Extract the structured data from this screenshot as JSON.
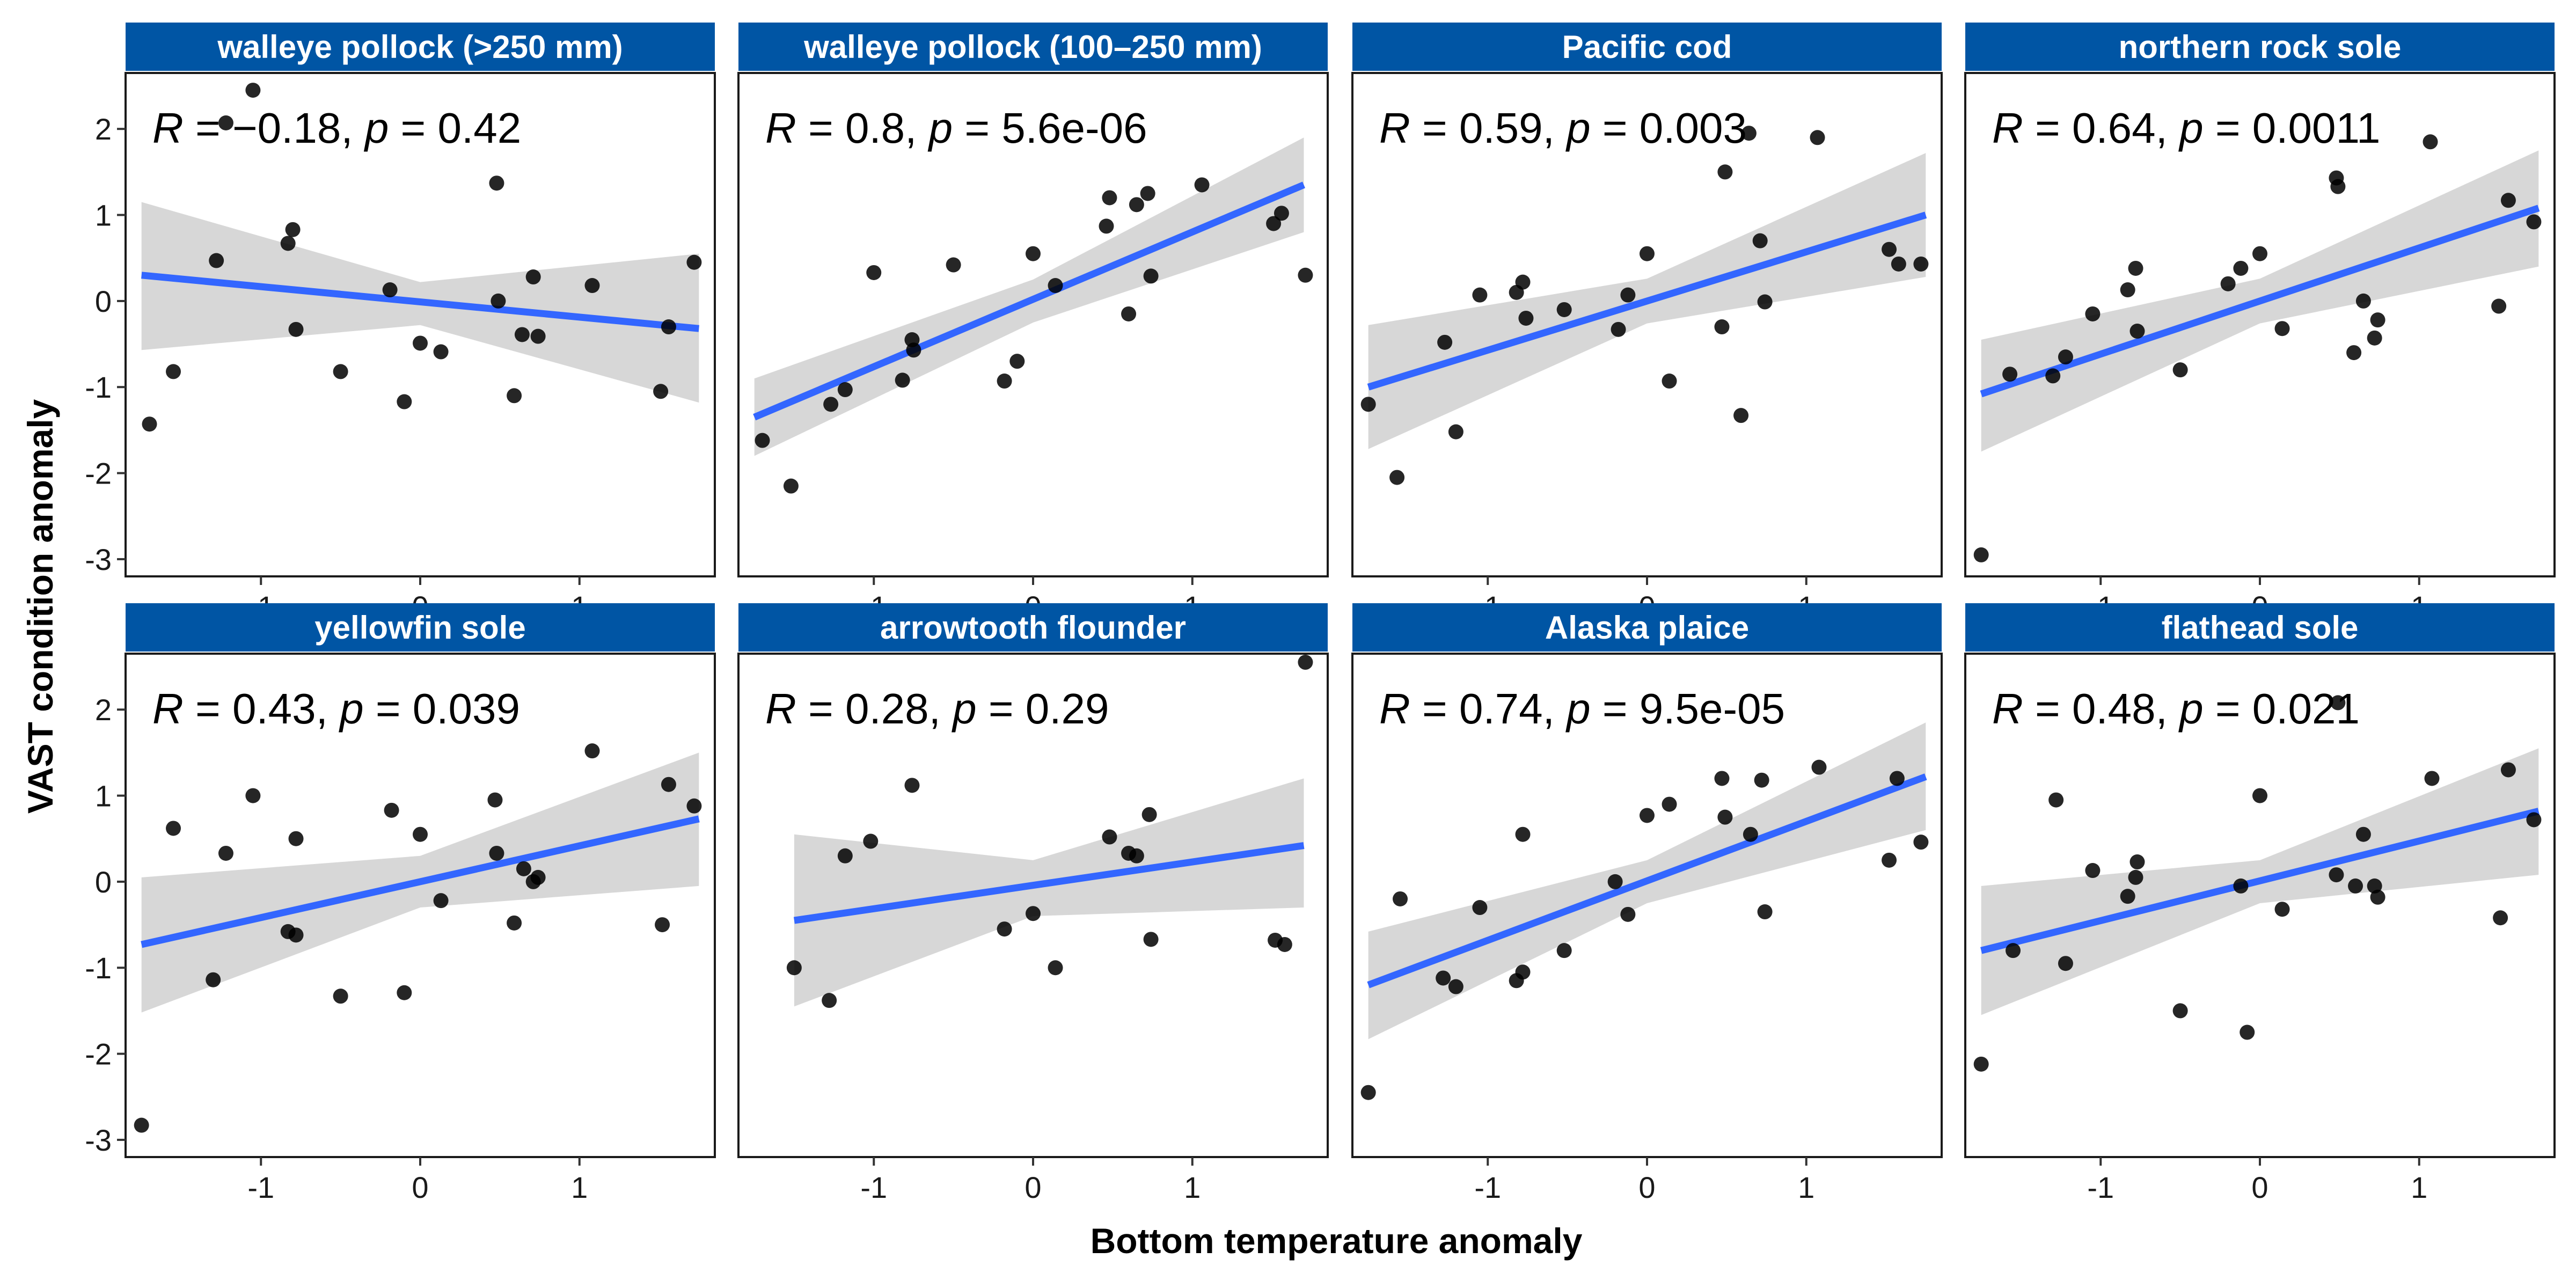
{
  "chart_data": {
    "type": "scatter",
    "xlabel": "Bottom temperature anomaly",
    "ylabel": "VAST condition anomaly",
    "xlim": [
      -1.85,
      1.85
    ],
    "ylim": [
      -3.2,
      2.65
    ],
    "x_ticks": [
      -1,
      0,
      1
    ],
    "x_tick_labels": [
      "-1",
      "0",
      "1"
    ],
    "y_ticks": [
      -3,
      -2,
      -1,
      0,
      1,
      2
    ],
    "y_tick_labels": [
      "-3",
      "-2",
      "-1",
      "0",
      "1",
      "2"
    ],
    "grid": false,
    "facet_layout": "2 rows x 4 columns",
    "colors": {
      "strip": "#0055a4",
      "fit_line": "#3366ff",
      "confidence_band": "#d3d3d3",
      "points": "#000000"
    },
    "panels": [
      {
        "title": "walleye pollock (>250 mm)",
        "stats": {
          "r_label": "R",
          "r_text": " = −0.18, ",
          "p_label": "p",
          "p_text": " = 0.42"
        },
        "fit": {
          "x": [
            -1.75,
            1.75
          ],
          "y": [
            0.3,
            -0.32
          ]
        },
        "band": {
          "x": [
            -1.75,
            0,
            1.75
          ],
          "upper": [
            1.15,
            0.22,
            0.55
          ],
          "lower": [
            -0.57,
            -0.28,
            -1.18
          ]
        },
        "points": [
          {
            "x": -1.7,
            "y": -1.43
          },
          {
            "x": -1.55,
            "y": -0.82
          },
          {
            "x": -1.28,
            "y": 0.47
          },
          {
            "x": -1.22,
            "y": 2.07
          },
          {
            "x": -1.05,
            "y": 2.45
          },
          {
            "x": -0.83,
            "y": 0.67
          },
          {
            "x": -0.8,
            "y": 0.83
          },
          {
            "x": -0.78,
            "y": -0.33
          },
          {
            "x": -0.5,
            "y": -0.82
          },
          {
            "x": -0.19,
            "y": 0.13
          },
          {
            "x": -0.1,
            "y": -1.17
          },
          {
            "x": 0.0,
            "y": -0.49
          },
          {
            "x": 0.13,
            "y": -0.59
          },
          {
            "x": 0.48,
            "y": 1.37
          },
          {
            "x": 0.49,
            "y": 0.0
          },
          {
            "x": 0.59,
            "y": -1.1
          },
          {
            "x": 0.64,
            "y": -0.39
          },
          {
            "x": 0.71,
            "y": 0.28
          },
          {
            "x": 0.74,
            "y": -0.41
          },
          {
            "x": 1.08,
            "y": 0.18
          },
          {
            "x": 1.51,
            "y": -1.05
          },
          {
            "x": 1.56,
            "y": -0.3
          },
          {
            "x": 1.72,
            "y": 0.45
          }
        ]
      },
      {
        "title": "walleye pollock (100–250 mm)",
        "stats": {
          "r_label": "R",
          "r_text": " = 0.8, ",
          "p_label": "p",
          "p_text": " = 5.6e-06"
        },
        "fit": {
          "x": [
            -1.75,
            1.7
          ],
          "y": [
            -1.35,
            1.35
          ]
        },
        "band": {
          "x": [
            -1.75,
            0,
            1.7
          ],
          "upper": [
            -0.9,
            0.25,
            1.9
          ],
          "lower": [
            -1.8,
            -0.25,
            0.8
          ]
        },
        "points": [
          {
            "x": -1.7,
            "y": -1.62
          },
          {
            "x": -1.52,
            "y": -2.15
          },
          {
            "x": -1.27,
            "y": -1.2
          },
          {
            "x": -1.18,
            "y": -1.03
          },
          {
            "x": -1.0,
            "y": 0.33
          },
          {
            "x": -0.82,
            "y": -0.92
          },
          {
            "x": -0.76,
            "y": -0.45
          },
          {
            "x": -0.75,
            "y": -0.57
          },
          {
            "x": -0.5,
            "y": 0.42
          },
          {
            "x": -0.18,
            "y": -0.93
          },
          {
            "x": -0.1,
            "y": -0.7
          },
          {
            "x": 0.0,
            "y": 0.55
          },
          {
            "x": 0.14,
            "y": 0.18
          },
          {
            "x": 0.46,
            "y": 0.87
          },
          {
            "x": 0.48,
            "y": 1.2
          },
          {
            "x": 0.6,
            "y": -0.15
          },
          {
            "x": 0.65,
            "y": 1.12
          },
          {
            "x": 0.72,
            "y": 1.25
          },
          {
            "x": 0.74,
            "y": 0.29
          },
          {
            "x": 1.06,
            "y": 1.35
          },
          {
            "x": 1.51,
            "y": 0.9
          },
          {
            "x": 1.56,
            "y": 1.02
          },
          {
            "x": 1.71,
            "y": 0.3
          }
        ]
      },
      {
        "title": "Pacific cod",
        "stats": {
          "r_label": "R",
          "r_text": " = 0.59, ",
          "p_label": "p",
          "p_text": " = 0.003"
        },
        "fit": {
          "x": [
            -1.75,
            1.75
          ],
          "y": [
            -1.0,
            1.0
          ]
        },
        "band": {
          "x": [
            -1.75,
            0,
            1.75
          ],
          "upper": [
            -0.28,
            0.26,
            1.72
          ],
          "lower": [
            -1.72,
            -0.26,
            0.28
          ]
        },
        "points": [
          {
            "x": -1.75,
            "y": -1.2
          },
          {
            "x": -1.57,
            "y": -2.05
          },
          {
            "x": -1.27,
            "y": -0.48
          },
          {
            "x": -1.2,
            "y": -1.52
          },
          {
            "x": -1.05,
            "y": 0.07
          },
          {
            "x": -0.82,
            "y": 0.1
          },
          {
            "x": -0.78,
            "y": 0.22
          },
          {
            "x": -0.76,
            "y": -0.2
          },
          {
            "x": -0.52,
            "y": -0.1
          },
          {
            "x": -0.18,
            "y": -0.33
          },
          {
            "x": -0.12,
            "y": 0.07
          },
          {
            "x": 0.0,
            "y": 0.55
          },
          {
            "x": 0.14,
            "y": -0.93
          },
          {
            "x": 0.47,
            "y": -0.3
          },
          {
            "x": 0.49,
            "y": 1.5
          },
          {
            "x": 0.59,
            "y": -1.33
          },
          {
            "x": 0.64,
            "y": 1.95
          },
          {
            "x": 0.71,
            "y": 0.7
          },
          {
            "x": 0.74,
            "y": -0.01
          },
          {
            "x": 1.07,
            "y": 1.9
          },
          {
            "x": 1.52,
            "y": 0.6
          },
          {
            "x": 1.58,
            "y": 0.43
          },
          {
            "x": 1.72,
            "y": 0.43
          }
        ]
      },
      {
        "title": "northern rock sole",
        "stats": {
          "r_label": "R",
          "r_text": " = 0.64, ",
          "p_label": "p",
          "p_text": " = 0.0011"
        },
        "fit": {
          "x": [
            -1.75,
            1.75
          ],
          "y": [
            -1.08,
            1.08
          ]
        },
        "band": {
          "x": [
            -1.75,
            0,
            1.75
          ],
          "upper": [
            -0.45,
            0.26,
            1.75
          ],
          "lower": [
            -1.75,
            -0.26,
            0.4
          ]
        },
        "points": [
          {
            "x": -1.75,
            "y": -2.95
          },
          {
            "x": -1.57,
            "y": -0.85
          },
          {
            "x": -1.3,
            "y": -0.87
          },
          {
            "x": -1.22,
            "y": -0.65
          },
          {
            "x": -1.05,
            "y": -0.15
          },
          {
            "x": -0.83,
            "y": 0.13
          },
          {
            "x": -0.78,
            "y": 0.38
          },
          {
            "x": -0.77,
            "y": -0.35
          },
          {
            "x": -0.5,
            "y": -0.8
          },
          {
            "x": -0.2,
            "y": 0.2
          },
          {
            "x": -0.12,
            "y": 0.38
          },
          {
            "x": 0.0,
            "y": 0.55
          },
          {
            "x": 0.14,
            "y": -0.32
          },
          {
            "x": 0.48,
            "y": 1.43
          },
          {
            "x": 0.49,
            "y": 1.33
          },
          {
            "x": 0.59,
            "y": -0.6
          },
          {
            "x": 0.65,
            "y": 0.0
          },
          {
            "x": 0.72,
            "y": -0.43
          },
          {
            "x": 0.74,
            "y": -0.22
          },
          {
            "x": 1.07,
            "y": 1.85
          },
          {
            "x": 1.5,
            "y": -0.06
          },
          {
            "x": 1.56,
            "y": 1.17
          },
          {
            "x": 1.72,
            "y": 0.92
          }
        ]
      },
      {
        "title": "yellowfin sole",
        "stats": {
          "r_label": "R",
          "r_text": " = 0.43, ",
          "p_label": "p",
          "p_text": " = 0.039"
        },
        "fit": {
          "x": [
            -1.75,
            1.75
          ],
          "y": [
            -0.73,
            0.73
          ]
        },
        "band": {
          "x": [
            -1.75,
            0,
            1.75
          ],
          "upper": [
            0.05,
            0.3,
            1.5
          ],
          "lower": [
            -1.52,
            -0.3,
            -0.05
          ]
        },
        "points": [
          {
            "x": -1.75,
            "y": -2.83
          },
          {
            "x": -1.55,
            "y": 0.62
          },
          {
            "x": -1.3,
            "y": -1.14
          },
          {
            "x": -1.22,
            "y": 0.33
          },
          {
            "x": -1.05,
            "y": 1.0
          },
          {
            "x": -0.83,
            "y": -0.58
          },
          {
            "x": -0.78,
            "y": 0.5
          },
          {
            "x": -0.78,
            "y": -0.62
          },
          {
            "x": -0.5,
            "y": -1.33
          },
          {
            "x": -0.18,
            "y": 0.83
          },
          {
            "x": -0.1,
            "y": -1.29
          },
          {
            "x": 0.0,
            "y": 0.55
          },
          {
            "x": 0.13,
            "y": -0.22
          },
          {
            "x": 0.47,
            "y": 0.95
          },
          {
            "x": 0.48,
            "y": 0.33
          },
          {
            "x": 0.59,
            "y": -0.48
          },
          {
            "x": 0.65,
            "y": 0.15
          },
          {
            "x": 0.71,
            "y": 0.0
          },
          {
            "x": 0.74,
            "y": 0.05
          },
          {
            "x": 1.08,
            "y": 1.52
          },
          {
            "x": 1.52,
            "y": -0.5
          },
          {
            "x": 1.56,
            "y": 1.13
          },
          {
            "x": 1.72,
            "y": 0.88
          }
        ]
      },
      {
        "title": "arrowtooth flounder",
        "stats": {
          "r_label": "R",
          "r_text": " = 0.28, ",
          "p_label": "p",
          "p_text": " = 0.29"
        },
        "fit": {
          "x": [
            -1.5,
            1.7
          ],
          "y": [
            -0.45,
            0.42
          ]
        },
        "band": {
          "x": [
            -1.5,
            0,
            1.7
          ],
          "upper": [
            0.55,
            0.25,
            1.2
          ],
          "lower": [
            -1.45,
            -0.4,
            -0.3
          ]
        },
        "points": [
          {
            "x": -1.5,
            "y": -1.0
          },
          {
            "x": -1.28,
            "y": -1.38
          },
          {
            "x": -1.18,
            "y": 0.3
          },
          {
            "x": -1.02,
            "y": 0.47
          },
          {
            "x": -0.76,
            "y": 1.12
          },
          {
            "x": -0.18,
            "y": -0.55
          },
          {
            "x": 0.0,
            "y": -0.37
          },
          {
            "x": 0.14,
            "y": -1.0
          },
          {
            "x": 0.48,
            "y": 0.52
          },
          {
            "x": 0.6,
            "y": 0.33
          },
          {
            "x": 0.65,
            "y": 0.3
          },
          {
            "x": 0.73,
            "y": 0.78
          },
          {
            "x": 0.74,
            "y": -0.67
          },
          {
            "x": 1.52,
            "y": -0.68
          },
          {
            "x": 1.58,
            "y": -0.73
          },
          {
            "x": 1.71,
            "y": 2.55
          }
        ]
      },
      {
        "title": "Alaska plaice",
        "stats": {
          "r_label": "R",
          "r_text": " = 0.74, ",
          "p_label": "p",
          "p_text": " = 9.5e-05"
        },
        "fit": {
          "x": [
            -1.75,
            1.75
          ],
          "y": [
            -1.2,
            1.22
          ]
        },
        "band": {
          "x": [
            -1.75,
            0,
            1.75
          ],
          "upper": [
            -0.58,
            0.25,
            1.85
          ],
          "lower": [
            -1.83,
            -0.25,
            0.6
          ]
        },
        "points": [
          {
            "x": -1.75,
            "y": -2.45
          },
          {
            "x": -1.55,
            "y": -0.2
          },
          {
            "x": -1.28,
            "y": -1.12
          },
          {
            "x": -1.2,
            "y": -1.22
          },
          {
            "x": -1.05,
            "y": -0.3
          },
          {
            "x": -0.82,
            "y": -1.15
          },
          {
            "x": -0.78,
            "y": -1.05
          },
          {
            "x": -0.78,
            "y": 0.55
          },
          {
            "x": -0.52,
            "y": -0.8
          },
          {
            "x": -0.2,
            "y": 0.0
          },
          {
            "x": -0.12,
            "y": -0.38
          },
          {
            "x": 0.0,
            "y": 0.77
          },
          {
            "x": 0.14,
            "y": 0.9
          },
          {
            "x": 0.47,
            "y": 1.2
          },
          {
            "x": 0.49,
            "y": 0.75
          },
          {
            "x": 0.65,
            "y": 0.55
          },
          {
            "x": 0.72,
            "y": 1.18
          },
          {
            "x": 0.74,
            "y": -0.35
          },
          {
            "x": 1.08,
            "y": 1.33
          },
          {
            "x": 1.52,
            "y": 0.25
          },
          {
            "x": 1.57,
            "y": 1.2
          },
          {
            "x": 1.72,
            "y": 0.46
          }
        ]
      },
      {
        "title": "flathead sole",
        "stats": {
          "r_label": "R",
          "r_text": " = 0.48, ",
          "p_label": "p",
          "p_text": " = 0.021"
        },
        "fit": {
          "x": [
            -1.75,
            1.75
          ],
          "y": [
            -0.8,
            0.82
          ]
        },
        "band": {
          "x": [
            -1.75,
            0,
            1.75
          ],
          "upper": [
            -0.05,
            0.25,
            1.55
          ],
          "lower": [
            -1.55,
            -0.25,
            0.08
          ]
        },
        "points": [
          {
            "x": -1.75,
            "y": -2.12
          },
          {
            "x": -1.55,
            "y": -0.8
          },
          {
            "x": -1.28,
            "y": 0.95
          },
          {
            "x": -1.22,
            "y": -0.95
          },
          {
            "x": -1.05,
            "y": 0.13
          },
          {
            "x": -0.83,
            "y": -0.17
          },
          {
            "x": -0.78,
            "y": 0.05
          },
          {
            "x": -0.77,
            "y": 0.23
          },
          {
            "x": -0.5,
            "y": -1.5
          },
          {
            "x": -0.12,
            "y": -0.05
          },
          {
            "x": -0.08,
            "y": -1.75
          },
          {
            "x": 0.0,
            "y": 1.0
          },
          {
            "x": 0.14,
            "y": -0.32
          },
          {
            "x": 0.48,
            "y": 0.08
          },
          {
            "x": 0.49,
            "y": 2.08
          },
          {
            "x": 0.6,
            "y": -0.05
          },
          {
            "x": 0.65,
            "y": 0.55
          },
          {
            "x": 0.72,
            "y": -0.05
          },
          {
            "x": 0.74,
            "y": -0.18
          },
          {
            "x": 1.08,
            "y": 1.2
          },
          {
            "x": 1.51,
            "y": -0.42
          },
          {
            "x": 1.56,
            "y": 1.3
          },
          {
            "x": 1.72,
            "y": 0.72
          }
        ]
      }
    ]
  }
}
